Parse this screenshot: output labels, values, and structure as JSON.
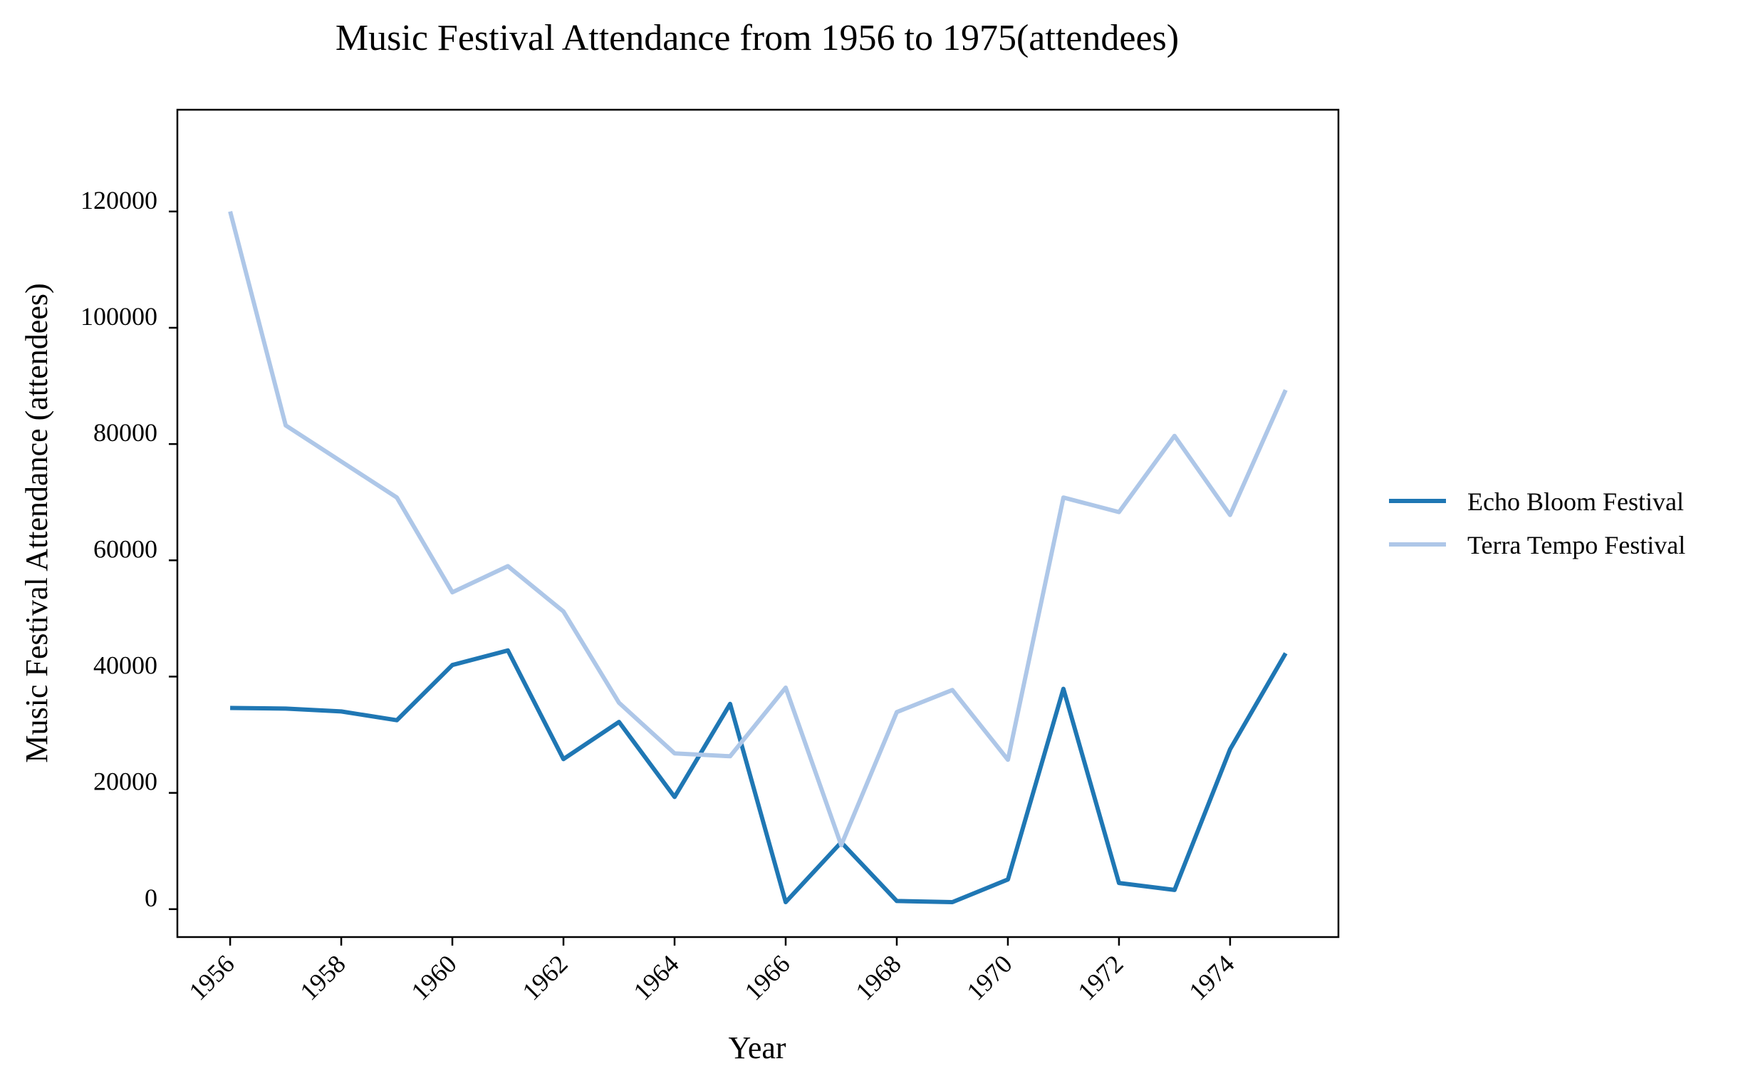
{
  "chart_data": {
    "type": "line",
    "title": "Music Festival Attendance from 1956 to 1975(attendees)",
    "xlabel": "Year",
    "ylabel": "Music Festival Attendance (attendees)",
    "x": [
      1956,
      1957,
      1958,
      1959,
      1960,
      1961,
      1962,
      1963,
      1964,
      1965,
      1966,
      1967,
      1968,
      1969,
      1970,
      1971,
      1972,
      1973,
      1974,
      1975
    ],
    "xlim": [
      1955.05,
      1975.95
    ],
    "ylim": [
      -4800,
      137500
    ],
    "x_ticks": [
      "1956",
      "1958",
      "1960",
      "1962",
      "1964",
      "1966",
      "1968",
      "1970",
      "1972",
      "1974"
    ],
    "y_ticks": [
      "0",
      "20000",
      "40000",
      "60000",
      "80000",
      "100000",
      "120000"
    ],
    "grid": false,
    "legend_position": "right",
    "series": [
      {
        "name": "Echo Bloom Festival",
        "color": "#1f77b4",
        "values": [
          34600,
          34500,
          34000,
          32500,
          42000,
          44500,
          25800,
          32200,
          19300,
          35300,
          1200,
          11500,
          1400,
          1200,
          5100,
          37900,
          4500,
          3300,
          27500,
          44000
        ]
      },
      {
        "name": "Terra Tempo Festival",
        "color": "#aec7e8",
        "values": [
          120000,
          83200,
          77000,
          70800,
          54500,
          59000,
          51200,
          35500,
          26800,
          26300,
          38100,
          11000,
          33900,
          37700,
          25700,
          70800,
          68300,
          81400,
          67800,
          89300
        ]
      }
    ]
  }
}
